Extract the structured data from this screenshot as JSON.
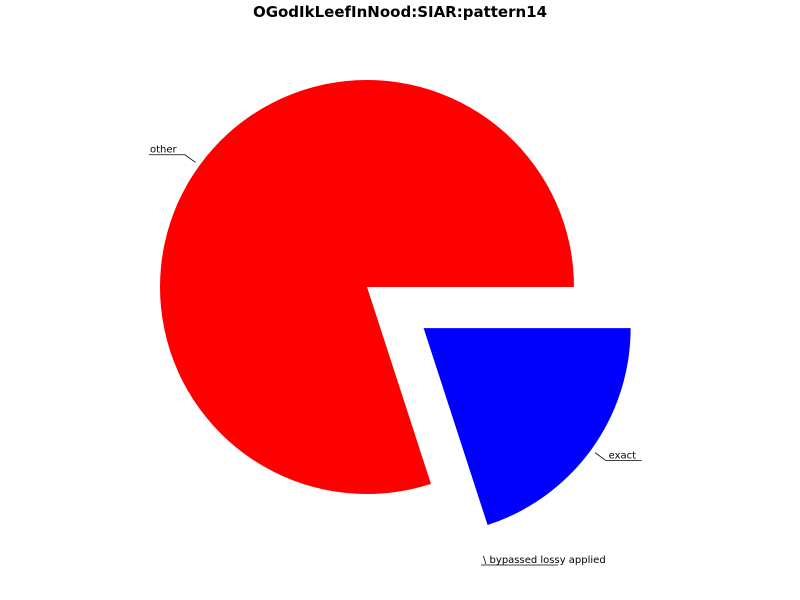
{
  "chart_data": {
    "type": "pie",
    "title": "OGodIkLeefInNood:SIAR:pattern14",
    "slices": [
      {
        "label": "exact",
        "value": 20.0,
        "color": "#0000ff",
        "exploded": true
      },
      {
        "label": "other",
        "value": 80.0,
        "color": "#ff0000",
        "exploded": false
      },
      {
        "label": "",
        "value": 0,
        "color": "#000000",
        "exploded": false
      }
    ],
    "start_angle_deg": 0,
    "direction": "clockwise",
    "overlapping_labels_text": "\\ bypassed lossy applied"
  }
}
